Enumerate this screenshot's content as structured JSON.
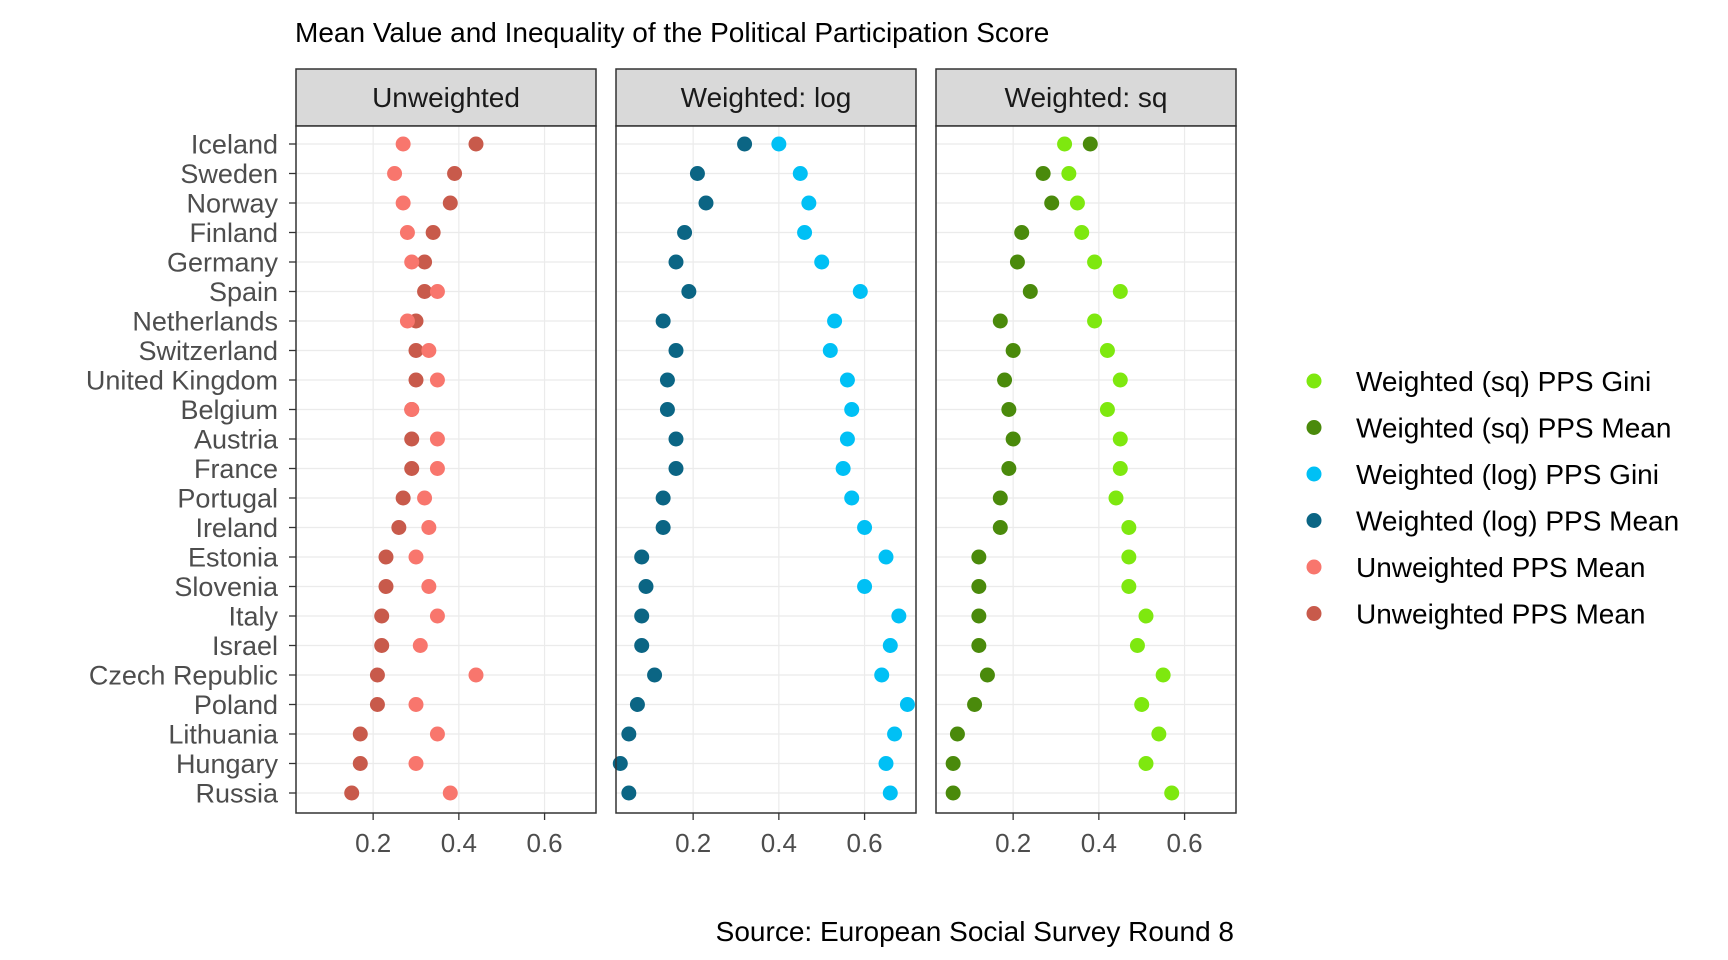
{
  "chart_data": {
    "type": "scatter",
    "title": "Mean Value and Inequality of the Political Participation Score",
    "caption": "Source: European Social Survey Round 8",
    "xlabel": "",
    "ylabel": "",
    "xlim": [
      0.02,
      0.72
    ],
    "x_ticks": [
      "0.2",
      "0.4",
      "0.6"
    ],
    "grid": true,
    "legend_position": "right",
    "categories": [
      "Iceland",
      "Sweden",
      "Norway",
      "Finland",
      "Germany",
      "Spain",
      "Netherlands",
      "Switzerland",
      "United Kingdom",
      "Belgium",
      "Austria",
      "France",
      "Portugal",
      "Ireland",
      "Estonia",
      "Slovenia",
      "Italy",
      "Israel",
      "Czech Republic",
      "Poland",
      "Lithuania",
      "Hungary",
      "Russia"
    ],
    "panels": [
      {
        "label": "Unweighted",
        "series": [
          {
            "name": "Unweighted PPS Mean",
            "color": "#c85a4b",
            "values": [
              0.44,
              0.39,
              0.38,
              0.34,
              0.32,
              0.32,
              0.3,
              0.3,
              0.3,
              0.29,
              0.29,
              0.29,
              0.27,
              0.26,
              0.23,
              0.23,
              0.22,
              0.22,
              0.21,
              0.21,
              0.17,
              0.17,
              0.15
            ]
          },
          {
            "name": "Unweighted PPS Mean",
            "color": "#f8766d",
            "values": [
              0.27,
              0.25,
              0.27,
              0.28,
              0.29,
              0.35,
              0.28,
              0.33,
              0.35,
              0.29,
              0.35,
              0.35,
              0.32,
              0.33,
              0.3,
              0.33,
              0.35,
              0.31,
              0.44,
              0.3,
              0.35,
              0.3,
              0.38
            ]
          }
        ]
      },
      {
        "label": "Weighted: log",
        "series": [
          {
            "name": "Weighted (log) PPS Mean",
            "color": "#0b6584",
            "values": [
              0.32,
              0.21,
              0.23,
              0.18,
              0.16,
              0.19,
              0.13,
              0.16,
              0.14,
              0.14,
              0.16,
              0.16,
              0.13,
              0.13,
              0.08,
              0.09,
              0.08,
              0.08,
              0.11,
              0.07,
              0.05,
              0.03,
              0.05
            ]
          },
          {
            "name": "Weighted (log) PPS Gini",
            "color": "#00c0f5",
            "values": [
              0.4,
              0.45,
              0.47,
              0.46,
              0.5,
              0.59,
              0.53,
              0.52,
              0.56,
              0.57,
              0.56,
              0.55,
              0.57,
              0.6,
              0.65,
              0.6,
              0.68,
              0.66,
              0.64,
              0.7,
              0.67,
              0.65,
              0.66
            ]
          }
        ]
      },
      {
        "label": "Weighted: sq",
        "series": [
          {
            "name": "Weighted (sq) PPS Mean",
            "color": "#4a8a0b",
            "values": [
              0.38,
              0.27,
              0.29,
              0.22,
              0.21,
              0.24,
              0.17,
              0.2,
              0.18,
              0.19,
              0.2,
              0.19,
              0.17,
              0.17,
              0.12,
              0.12,
              0.12,
              0.12,
              0.14,
              0.11,
              0.07,
              0.06,
              0.06
            ]
          },
          {
            "name": "Weighted (sq) PPS Gini",
            "color": "#7ee80f",
            "values": [
              0.32,
              0.33,
              0.35,
              0.36,
              0.39,
              0.45,
              0.39,
              0.42,
              0.45,
              0.42,
              0.45,
              0.45,
              0.44,
              0.47,
              0.47,
              0.47,
              0.51,
              0.49,
              0.55,
              0.5,
              0.54,
              0.51,
              0.57
            ]
          }
        ]
      }
    ],
    "legend": [
      {
        "name": "Weighted (sq) PPS Gini",
        "color": "#7ee80f"
      },
      {
        "name": "Weighted (sq) PPS Mean",
        "color": "#4a8a0b"
      },
      {
        "name": "Weighted (log) PPS Gini",
        "color": "#00c0f5"
      },
      {
        "name": "Weighted (log) PPS Mean",
        "color": "#0b6584"
      },
      {
        "name": "Unweighted PPS Mean",
        "color": "#f8766d"
      },
      {
        "name": "Unweighted PPS Mean",
        "color": "#c85a4b"
      }
    ]
  }
}
